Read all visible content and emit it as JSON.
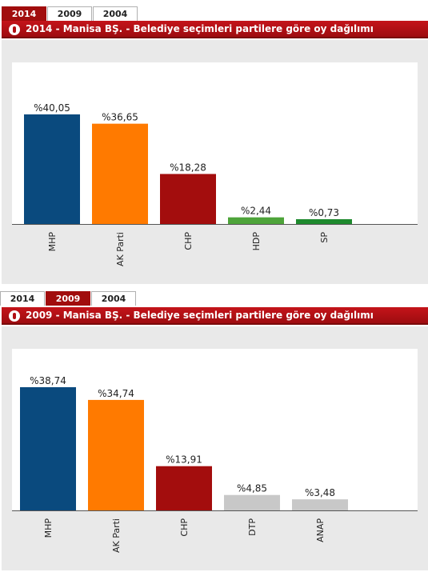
{
  "panels": [
    {
      "tabs": [
        "2014",
        "2009",
        "2004"
      ],
      "active_tab": 0,
      "title": "2014 - Manisa BŞ. - Belediye seçimleri partilere göre oy dağılımı",
      "chart_data": {
        "type": "bar",
        "categories": [
          "MHP",
          "AK Parti",
          "CHP",
          "HDP",
          "SP"
        ],
        "values": [
          40.05,
          36.65,
          18.28,
          2.44,
          0.73
        ],
        "labels": [
          "%40,05",
          "%36,65",
          "%18,28",
          "%2,44",
          "%0,73"
        ],
        "colors": [
          "#0a4a7e",
          "#ff7a00",
          "#a30d0d",
          "#4ea43a",
          "#1e8a2e"
        ],
        "ylim": [
          0,
          40.05
        ]
      }
    },
    {
      "tabs": [
        "2014",
        "2009",
        "2004"
      ],
      "active_tab": 1,
      "title": "2009 - Manisa BŞ. - Belediye seçimleri partilere göre oy dağılımı",
      "chart_data": {
        "type": "bar",
        "categories": [
          "MHP",
          "AK Parti",
          "CHP",
          "DTP",
          "ANAP"
        ],
        "values": [
          38.74,
          34.74,
          13.91,
          4.85,
          3.48
        ],
        "labels": [
          "%38,74",
          "%34,74",
          "%13,91",
          "%4,85",
          "%3,48"
        ],
        "colors": [
          "#0a4a7e",
          "#ff7a00",
          "#a30d0d",
          "#c8c8c8",
          "#c8c8c8"
        ],
        "ylim": [
          0,
          38.74
        ]
      }
    }
  ]
}
